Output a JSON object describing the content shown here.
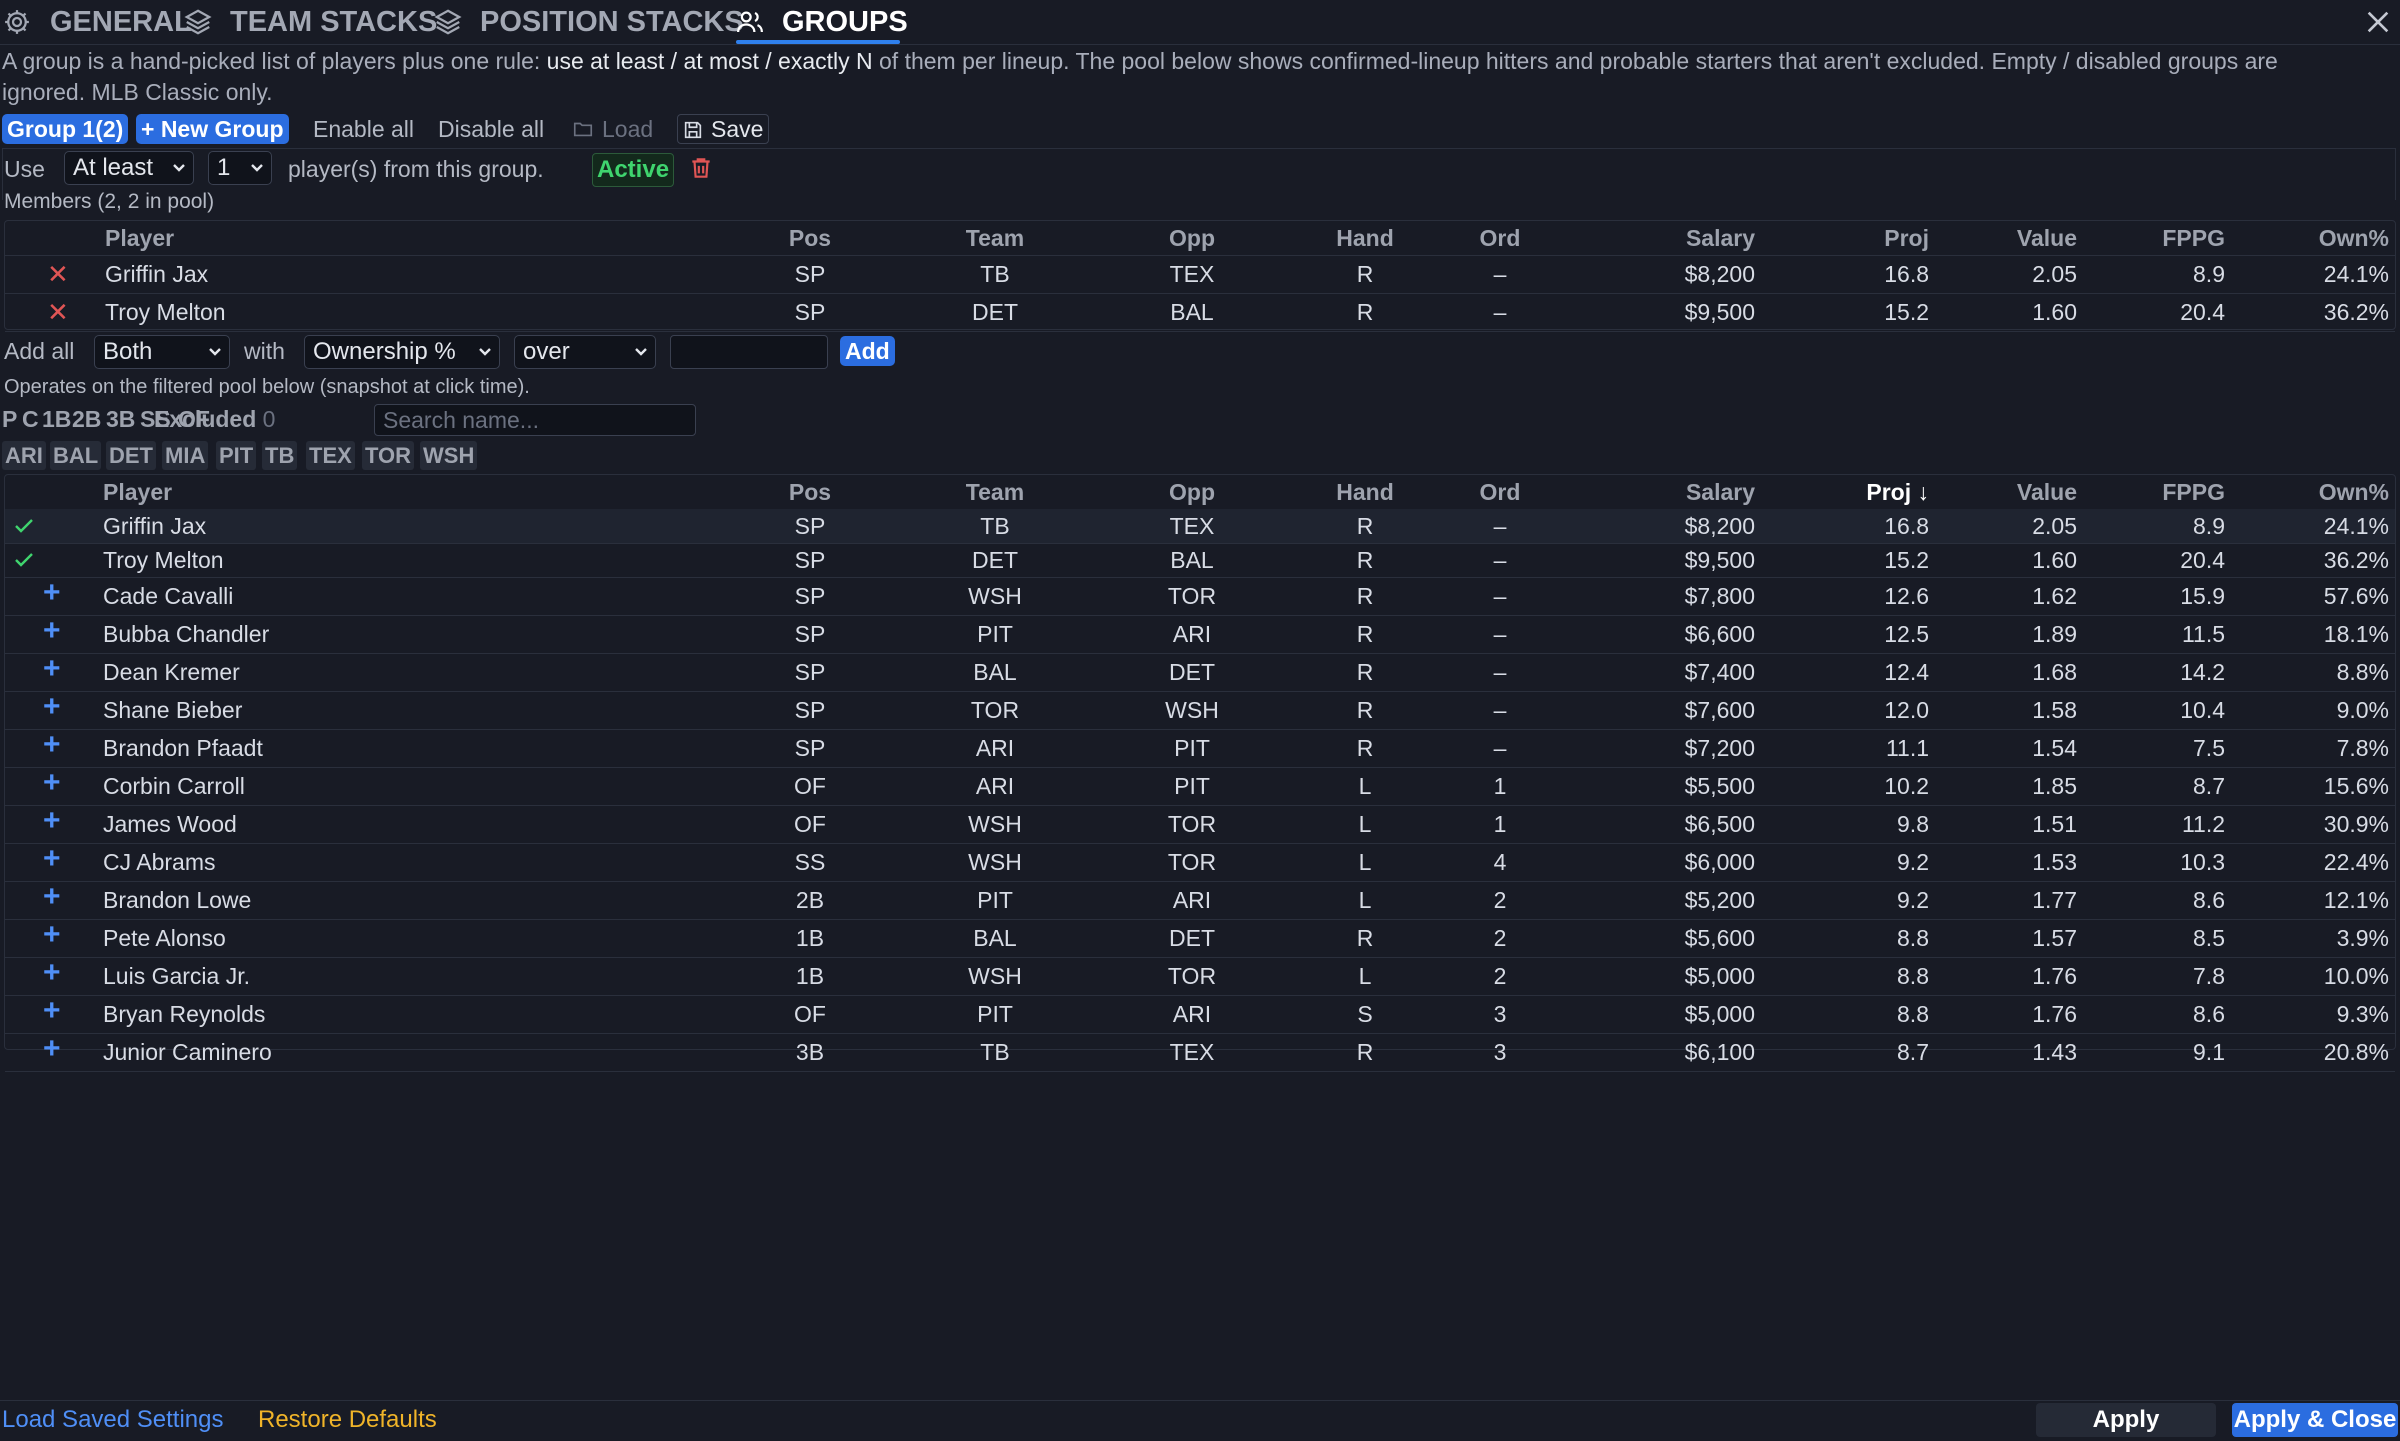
{
  "tabs": [
    {
      "label": "GENERAL",
      "icon": "gear-icon"
    },
    {
      "label": "TEAM STACKS",
      "icon": "layers-icon"
    },
    {
      "label": "POSITION STACKS",
      "icon": "layers-icon"
    },
    {
      "label": "GROUPS",
      "icon": "users-icon",
      "active": true
    }
  ],
  "description": {
    "part1": "A group is a hand-picked list of players plus one rule: ",
    "emphasis": "use at least / at most / exactly N",
    "part2": " of them per lineup. The pool below shows confirmed-lineup hitters and probable starters that aren't excluded. Empty / disabled groups are ignored. MLB Classic only."
  },
  "group_bar": {
    "group_name": "Group 1",
    "group_count": "(2)",
    "new_group": "+ New Group",
    "enable_all": "Enable all",
    "disable_all": "Disable all",
    "load": "Load",
    "save": "Save"
  },
  "rule": {
    "use_label": "Use",
    "mode": "At least",
    "count": "1",
    "suffix": "player(s) from this group.",
    "status": "Active"
  },
  "members": {
    "label": "Members (2, 2 in pool)",
    "columns": [
      "Player",
      "Pos",
      "Team",
      "Opp",
      "Hand",
      "Ord",
      "Salary",
      "Proj",
      "Value",
      "FPPG",
      "Own%"
    ],
    "rows": [
      [
        "Griffin Jax",
        "SP",
        "TB",
        "TEX",
        "R",
        "–",
        "$8,200",
        "16.8",
        "2.05",
        "8.9",
        "24.1%"
      ],
      [
        "Troy Melton",
        "SP",
        "DET",
        "BAL",
        "R",
        "–",
        "$9,500",
        "15.2",
        "1.60",
        "20.4",
        "36.2%"
      ]
    ]
  },
  "add_all": {
    "label": "Add all",
    "hand": "Both",
    "with_label": "with",
    "metric": "Ownership %",
    "comparator": "over",
    "value": "",
    "add_button": "Add",
    "note": "Operates on the filtered pool below (snapshot at click time)."
  },
  "filters": {
    "positions": [
      "P",
      "C",
      "1B",
      "2B",
      "3B",
      "SS",
      "OF"
    ],
    "excluded_label": "Excluded",
    "excluded_count": "0",
    "search_placeholder": "Search name...",
    "teams": [
      "ARI",
      "BAL",
      "DET",
      "MIA",
      "PIT",
      "TB",
      "TEX",
      "TOR",
      "WSH"
    ]
  },
  "pool": {
    "columns": [
      "Player",
      "Pos",
      "Team",
      "Opp",
      "Hand",
      "Ord",
      "Salary",
      "Proj ↓",
      "Value",
      "FPPG",
      "Own%"
    ],
    "rows": [
      {
        "mark": "check",
        "cells": [
          "Griffin Jax",
          "SP",
          "TB",
          "TEX",
          "R",
          "–",
          "$8,200",
          "16.8",
          "2.05",
          "8.9",
          "24.1%"
        ]
      },
      {
        "mark": "check",
        "cells": [
          "Troy Melton",
          "SP",
          "DET",
          "BAL",
          "R",
          "–",
          "$9,500",
          "15.2",
          "1.60",
          "20.4",
          "36.2%"
        ]
      },
      {
        "mark": "plus",
        "cells": [
          "Cade Cavalli",
          "SP",
          "WSH",
          "TOR",
          "R",
          "–",
          "$7,800",
          "12.6",
          "1.62",
          "15.9",
          "57.6%"
        ]
      },
      {
        "mark": "plus",
        "cells": [
          "Bubba Chandler",
          "SP",
          "PIT",
          "ARI",
          "R",
          "–",
          "$6,600",
          "12.5",
          "1.89",
          "11.5",
          "18.1%"
        ]
      },
      {
        "mark": "plus",
        "cells": [
          "Dean Kremer",
          "SP",
          "BAL",
          "DET",
          "R",
          "–",
          "$7,400",
          "12.4",
          "1.68",
          "14.2",
          "8.8%"
        ]
      },
      {
        "mark": "plus",
        "cells": [
          "Shane Bieber",
          "SP",
          "TOR",
          "WSH",
          "R",
          "–",
          "$7,600",
          "12.0",
          "1.58",
          "10.4",
          "9.0%"
        ]
      },
      {
        "mark": "plus",
        "cells": [
          "Brandon Pfaadt",
          "SP",
          "ARI",
          "PIT",
          "R",
          "–",
          "$7,200",
          "11.1",
          "1.54",
          "7.5",
          "7.8%"
        ]
      },
      {
        "mark": "plus",
        "cells": [
          "Corbin Carroll",
          "OF",
          "ARI",
          "PIT",
          "L",
          "1",
          "$5,500",
          "10.2",
          "1.85",
          "8.7",
          "15.6%"
        ]
      },
      {
        "mark": "plus",
        "cells": [
          "James Wood",
          "OF",
          "WSH",
          "TOR",
          "L",
          "1",
          "$6,500",
          "9.8",
          "1.51",
          "11.2",
          "30.9%"
        ]
      },
      {
        "mark": "plus",
        "cells": [
          "CJ Abrams",
          "SS",
          "WSH",
          "TOR",
          "L",
          "4",
          "$6,000",
          "9.2",
          "1.53",
          "10.3",
          "22.4%"
        ]
      },
      {
        "mark": "plus",
        "cells": [
          "Brandon Lowe",
          "2B",
          "PIT",
          "ARI",
          "L",
          "2",
          "$5,200",
          "9.2",
          "1.77",
          "8.6",
          "12.1%"
        ]
      },
      {
        "mark": "plus",
        "cells": [
          "Pete Alonso",
          "1B",
          "BAL",
          "DET",
          "R",
          "2",
          "$5,600",
          "8.8",
          "1.57",
          "8.5",
          "3.9%"
        ]
      },
      {
        "mark": "plus",
        "cells": [
          "Luis Garcia Jr.",
          "1B",
          "WSH",
          "TOR",
          "L",
          "2",
          "$5,000",
          "8.8",
          "1.76",
          "7.8",
          "10.0%"
        ]
      },
      {
        "mark": "plus",
        "cells": [
          "Bryan Reynolds",
          "OF",
          "PIT",
          "ARI",
          "S",
          "3",
          "$5,000",
          "8.8",
          "1.76",
          "8.6",
          "9.3%"
        ]
      },
      {
        "mark": "plus",
        "cells": [
          "Junior Caminero",
          "3B",
          "TB",
          "TEX",
          "R",
          "3",
          "$6,100",
          "8.7",
          "1.43",
          "9.1",
          "20.8%"
        ]
      }
    ]
  },
  "footer": {
    "load_saved": "Load Saved Settings",
    "restore_defaults": "Restore Defaults",
    "apply": "Apply",
    "apply_close": "Apply & Close"
  },
  "colors": {
    "accent": "#2b6de0",
    "active_green": "#3fd46e",
    "remove_red": "#e05555",
    "restore_yellow": "#f0b429",
    "link_blue": "#4f8ff7"
  }
}
